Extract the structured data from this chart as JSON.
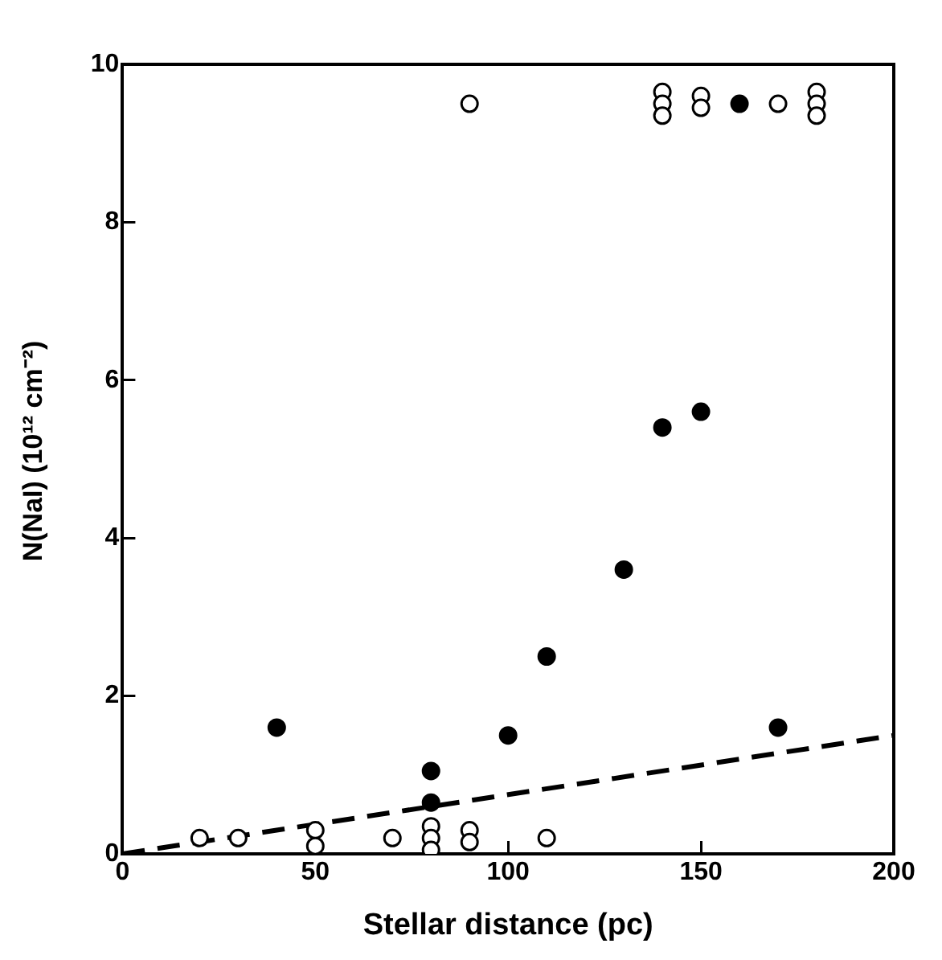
{
  "chart_data": {
    "type": "scatter",
    "xlabel": "Stellar distance (pc)",
    "ylabel": "N(NaI)  (10¹² cm⁻²)",
    "xlim": [
      0,
      200
    ],
    "xticks": [
      0,
      50,
      100,
      150,
      200
    ],
    "ylim": [
      0,
      10
    ],
    "yticks": [
      0,
      2,
      4,
      6,
      8,
      10
    ],
    "grid": false,
    "legend": false,
    "marker": "circle",
    "series": [
      {
        "type": "scatter",
        "color": "#ffffff",
        "x": [
          20,
          30,
          50,
          50,
          70,
          80,
          80,
          80,
          90,
          90,
          110,
          90,
          140,
          140,
          140,
          150,
          150,
          170,
          180,
          180,
          180
        ],
        "values": [
          0.2,
          0.2,
          0.3,
          0.1,
          0.2,
          0.35,
          0.2,
          0.05,
          0.3,
          0.15,
          0.2,
          9.5,
          9.65,
          9.5,
          9.35,
          9.6,
          9.45,
          9.5,
          9.65,
          9.5,
          9.35
        ]
      },
      {
        "type": "scatter",
        "color": "#000000",
        "x": [
          40,
          80,
          80,
          100,
          110,
          130,
          140,
          150,
          160,
          170
        ],
        "values": [
          1.6,
          1.05,
          0.65,
          1.5,
          2.5,
          3.6,
          5.4,
          5.6,
          9.5,
          1.6
        ]
      },
      {
        "type": "line",
        "color": "#000000",
        "line_style": "dashed",
        "marker": "none",
        "x": [
          0,
          200
        ],
        "values": [
          0,
          1.5
        ]
      }
    ]
  }
}
